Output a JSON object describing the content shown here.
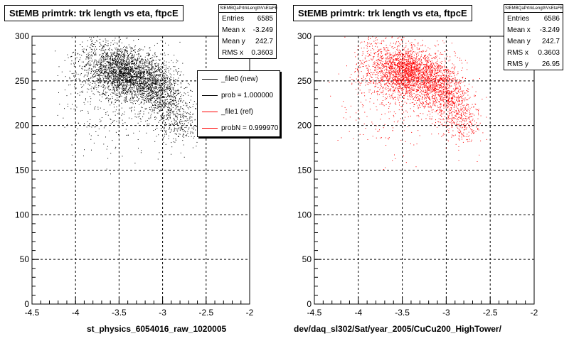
{
  "chart_data": [
    {
      "type": "scatter",
      "title": "StEMB primtrk: trk length vs eta, ftpcE",
      "xlabel": "st_physics_6054016_raw_1020005",
      "ylabel": "",
      "xlim": [
        -4.5,
        -2
      ],
      "ylim": [
        0,
        300
      ],
      "x_ticks": [
        "-4.5",
        "-4",
        "-3.5",
        "-3",
        "-2.5",
        "-2"
      ],
      "y_ticks": [
        "0",
        "50",
        "100",
        "150",
        "200",
        "250",
        "300"
      ],
      "grid": true,
      "marker_color": "#000000",
      "seed": 11,
      "stats": {
        "name": "StEMBQaPrtrkLengthVsEtaFE",
        "rows": [
          {
            "label": "Entries",
            "value": "6585"
          },
          {
            "label": "Mean x",
            "value": "-3.249"
          },
          {
            "label": "Mean y",
            "value": "242.7"
          },
          {
            "label": "RMS x",
            "value": "0.3603"
          }
        ]
      },
      "legend": {
        "placement": "top-right",
        "entries": [
          {
            "label": "_file0 (new)",
            "color": "#000000"
          },
          {
            "label": "prob = 1.000000",
            "color": "#000000"
          },
          {
            "label": "_file1 (ref)",
            "color": "#ff0000"
          },
          {
            "label": "probN = 0.999970",
            "color": "#ff0000"
          }
        ]
      },
      "clusters": [
        {
          "n": 1500,
          "x": -3.45,
          "sx": 0.13,
          "y": 260,
          "sy": 14
        },
        {
          "n": 900,
          "x": -3.15,
          "sx": 0.12,
          "y": 248,
          "sy": 16
        },
        {
          "n": 500,
          "x": -2.95,
          "sx": 0.1,
          "y": 230,
          "sy": 18
        },
        {
          "n": 550,
          "x": -3.75,
          "sx": 0.15,
          "y": 268,
          "sy": 16
        },
        {
          "n": 220,
          "x": -2.78,
          "sx": 0.09,
          "y": 205,
          "sy": 15
        },
        {
          "n": 230,
          "x": -3.6,
          "sx": 0.3,
          "y": 220,
          "sy": 25
        }
      ]
    },
    {
      "type": "scatter",
      "title": "StEMB primtrk: trk length vs eta, ftpcE",
      "xlabel": "dev/daq_sl302/Sat/year_2005/CuCu200_HighTower/",
      "ylabel": "",
      "xlim": [
        -4.5,
        -2
      ],
      "ylim": [
        0,
        300
      ],
      "x_ticks": [
        "-4.5",
        "-4",
        "-3.5",
        "-3",
        "-2.5",
        "-2"
      ],
      "y_ticks": [
        "0",
        "50",
        "100",
        "150",
        "200",
        "250",
        "300"
      ],
      "grid": true,
      "marker_color": "#ff0000",
      "seed": 29,
      "stats": {
        "name": "StEMBQaPrtrkLengthVsEtaFE",
        "rows": [
          {
            "label": "Entries",
            "value": "6586"
          },
          {
            "label": "Mean x",
            "value": "-3.249"
          },
          {
            "label": "Mean y",
            "value": "242.7"
          },
          {
            "label": "RMS x",
            "value": "0.3603"
          },
          {
            "label": "RMS y",
            "value": "26.95"
          }
        ]
      },
      "clusters": [
        {
          "n": 1500,
          "x": -3.45,
          "sx": 0.13,
          "y": 260,
          "sy": 14
        },
        {
          "n": 900,
          "x": -3.15,
          "sx": 0.12,
          "y": 248,
          "sy": 16
        },
        {
          "n": 500,
          "x": -2.95,
          "sx": 0.1,
          "y": 230,
          "sy": 18
        },
        {
          "n": 550,
          "x": -3.75,
          "sx": 0.15,
          "y": 268,
          "sy": 16
        },
        {
          "n": 220,
          "x": -2.78,
          "sx": 0.09,
          "y": 205,
          "sy": 15
        },
        {
          "n": 230,
          "x": -3.6,
          "sx": 0.3,
          "y": 220,
          "sy": 25
        }
      ]
    }
  ]
}
